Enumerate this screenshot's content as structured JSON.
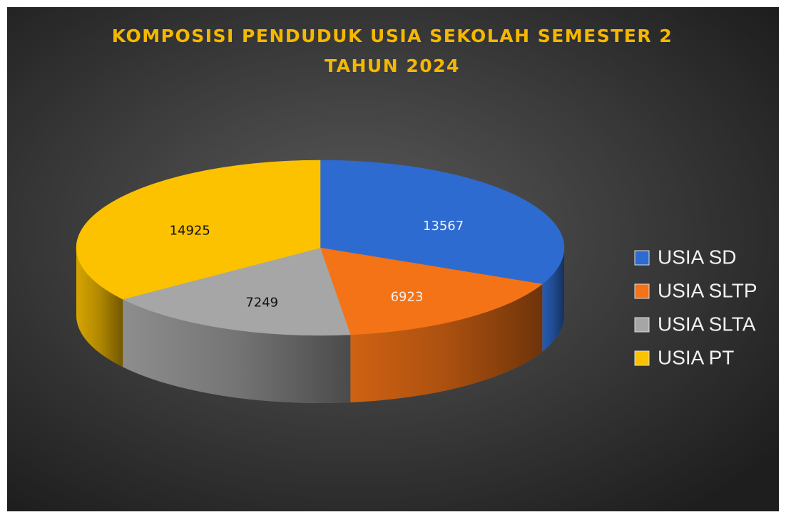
{
  "chart_data": {
    "type": "pie",
    "title": "KOMPOSISI PENDUDUK USIA SEKOLAH SEMESTER 2 TAHUN 2024",
    "categories": [
      "USIA SD",
      "USIA SLTP",
      "USIA SLTA",
      "USIA PT"
    ],
    "values": [
      13567,
      6923,
      7249,
      14925
    ],
    "colors": [
      "#2e6bd0",
      "#f47316",
      "#a6a6a6",
      "#fcc200"
    ],
    "legend": "right"
  }
}
